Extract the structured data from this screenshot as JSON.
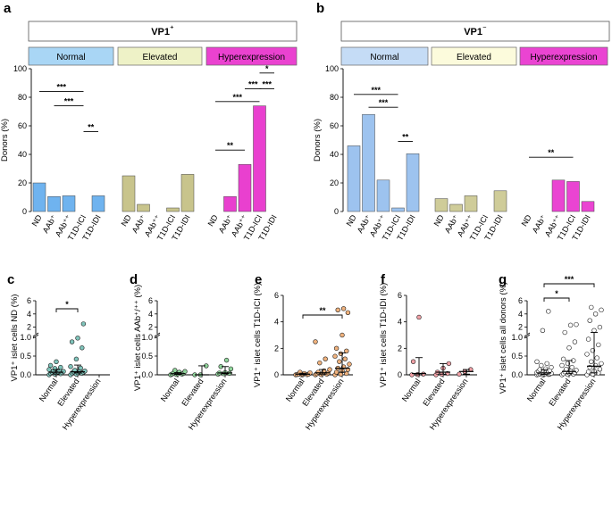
{
  "colors": {
    "a_normal": "#6fb3ef",
    "a_normal_box": "#a9d6f5",
    "a_elevated": "#c8c48c",
    "a_elevated_box": "#eef2c7",
    "a_hyper": "#e940cf",
    "a_hyper_box": "#ea42d0",
    "b_normal": "#9dc3ef",
    "b_normal_box": "#c5dcf6",
    "b_elevated": "#cfcc99",
    "b_elevated_box": "#fcfbdc",
    "b_hyper": "#ea44d2",
    "b_hyper_box": "#ea44d2",
    "c_dot": "#7fc4bb",
    "d_dot": "#8fd39a",
    "e_dot": "#f0b27d",
    "f_dot": "#f1a0a6",
    "g_dot": "#ffffff"
  },
  "chart_data": [
    {
      "panel": "a",
      "type": "bar",
      "title": "VP1⁺",
      "groups": [
        "Normal",
        "Elevated",
        "Hyperexpression"
      ],
      "categories": [
        "ND",
        "AAb⁺",
        "AAb⁺⁺",
        "T1D-ICI",
        "T1D-IDI"
      ],
      "series": [
        {
          "name": "Normal",
          "values": [
            20,
            10.5,
            11,
            0,
            11
          ]
        },
        {
          "name": "Elevated",
          "values": [
            25,
            5,
            0,
            2.5,
            26
          ]
        },
        {
          "name": "Hyperexpression",
          "values": [
            0,
            10.5,
            33,
            74,
            0
          ]
        }
      ],
      "ylabel": "Donors (%)",
      "ylim": [
        0,
        100
      ],
      "yticks": [
        0,
        20,
        40,
        60,
        80,
        100
      ],
      "significance": [
        {
          "group": 0,
          "from": 0,
          "to": 3,
          "label": "***"
        },
        {
          "group": 0,
          "from": 1,
          "to": 3,
          "label": "***"
        },
        {
          "group": 0,
          "from": 3,
          "to": 4,
          "label": "**"
        },
        {
          "group": 2,
          "from": 3,
          "to": 4,
          "label": "*"
        },
        {
          "group": 2,
          "from": 2,
          "to": 4,
          "label": "***"
        },
        {
          "group": 2,
          "from": 2,
          "to": 3,
          "label": "***"
        },
        {
          "group": 2,
          "from": 0,
          "to": 3,
          "label": "***"
        },
        {
          "group": 2,
          "from": 0,
          "to": 2,
          "label": "**"
        }
      ]
    },
    {
      "panel": "b",
      "type": "bar",
      "title": "VP1⁻",
      "groups": [
        "Normal",
        "Elevated",
        "Hyperexpression"
      ],
      "categories": [
        "ND",
        "AAb⁺",
        "AAb⁺⁺",
        "T1D-ICI",
        "T1D-IDI"
      ],
      "series": [
        {
          "name": "Normal",
          "values": [
            46,
            68,
            22,
            2.5,
            40.5
          ]
        },
        {
          "name": "Elevated",
          "values": [
            9,
            5,
            11,
            0,
            14.5
          ]
        },
        {
          "name": "Hyperexpression",
          "values": [
            0,
            0,
            22,
            21,
            7
          ]
        }
      ],
      "ylabel": "Donors (%)",
      "ylim": [
        0,
        100
      ],
      "yticks": [
        0,
        20,
        40,
        60,
        80,
        100
      ],
      "significance": [
        {
          "group": 0,
          "from": 0,
          "to": 3,
          "label": "***"
        },
        {
          "group": 0,
          "from": 1,
          "to": 3,
          "label": "***"
        },
        {
          "group": 0,
          "from": 3,
          "to": 4,
          "label": "**"
        },
        {
          "group": 2,
          "from": 0,
          "to": 3,
          "label": "**"
        }
      ]
    },
    {
      "panel": "c",
      "type": "scatter",
      "ylabel": "VP1⁺ islet cells ND (%)",
      "categories": [
        "Normal",
        "Elevated",
        "Hyperexpression"
      ],
      "yticks_lower": [
        0,
        0.5,
        1
      ],
      "yticks_upper": [
        2,
        4,
        6
      ],
      "ylim_lower": [
        0,
        1
      ],
      "ylim_upper": [
        1,
        6
      ],
      "points": [
        [
          0,
          0.02,
          0.03,
          0.04,
          0.05,
          0.06,
          0.07,
          0.08,
          0.09,
          0.1,
          0.12,
          0.14,
          0.17,
          0.2,
          0.25,
          0.35
        ],
        [
          0,
          0.02,
          0.04,
          0.05,
          0.06,
          0.07,
          0.08,
          0.09,
          0.1,
          0.12,
          0.18,
          0.22,
          0.42,
          0.72,
          0.88,
          0.98,
          2.5
        ],
        []
      ],
      "medians": [
        0.07,
        0.08,
        null
      ],
      "iqr": [
        [
          0.02,
          0.14
        ],
        [
          0.05,
          0.26
        ],
        null
      ],
      "significance": [
        {
          "from": 0,
          "to": 1,
          "label": "*"
        }
      ]
    },
    {
      "panel": "d",
      "type": "scatter",
      "ylabel": "VP1⁺ islet cells AAb⁺/⁺⁺ (%)",
      "categories": [
        "Normal",
        "Elevated",
        "Hyperexpression"
      ],
      "yticks_lower": [
        0,
        0.5,
        1
      ],
      "yticks_upper": [
        2,
        4,
        6
      ],
      "ylim_lower": [
        0,
        1
      ],
      "ylim_upper": [
        1,
        6
      ],
      "points": [
        [
          0,
          0.01,
          0.02,
          0.02,
          0.03,
          0.04,
          0.05,
          0.07,
          0.09,
          0.12
        ],
        [
          0,
          0,
          0.24
        ],
        [
          0.02,
          0.03,
          0.04,
          0.05,
          0.06,
          0.16,
          0.22,
          0.39
        ]
      ],
      "medians": [
        0.03,
        0,
        0.05
      ],
      "iqr": [
        [
          0.01,
          0.06
        ],
        [
          0,
          0.24
        ],
        [
          0.03,
          0.22
        ]
      ],
      "significance": []
    },
    {
      "panel": "e",
      "type": "scatter",
      "ylabel": "VP1⁺ islet cells T1D-ICI (%)",
      "categories": [
        "Normal",
        "Elevated",
        "Hyperexpression"
      ],
      "yticks": [
        0,
        2,
        4,
        6
      ],
      "ylim": [
        0,
        6
      ],
      "points": [
        [
          0,
          0,
          0.01,
          0.02,
          0.03,
          0.05,
          0.07,
          0.1,
          0.15,
          0.2
        ],
        [
          0,
          0.02,
          0.05,
          0.08,
          0.1,
          0.15,
          0.2,
          0.3,
          0.4,
          0.9,
          1.2,
          2.5
        ],
        [
          0,
          0.05,
          0.1,
          0.2,
          0.3,
          0.4,
          0.5,
          0.6,
          0.8,
          1.0,
          1.2,
          1.4,
          1.6,
          1.8,
          2.0,
          3.0,
          4.7,
          4.9,
          5.0
        ]
      ],
      "medians": [
        0.05,
        0.15,
        0.5
      ],
      "iqr": [
        [
          0.01,
          0.12
        ],
        [
          0.05,
          0.4
        ],
        [
          0.2,
          1.65
        ]
      ],
      "significance": [
        {
          "from": 0,
          "to": 2,
          "label": "**"
        }
      ]
    },
    {
      "panel": "f",
      "type": "scatter",
      "ylabel": "VP1⁺ islet cells T1D-IDI (%)",
      "categories": [
        "Normal",
        "Elevated",
        "Hyperexpression"
      ],
      "yticks": [
        0,
        2,
        4,
        6
      ],
      "ylim": [
        0,
        6
      ],
      "points": [
        [
          0,
          0.02,
          0.05,
          1.0,
          4.35
        ],
        [
          0,
          0.05,
          0.1,
          0.2,
          0.5,
          0.85
        ],
        [
          0.05,
          0.25,
          0.4
        ]
      ],
      "medians": [
        0.1,
        0.2,
        0.25
      ],
      "iqr": [
        [
          0,
          1.3
        ],
        [
          0.05,
          0.85
        ],
        [
          0.05,
          0.4
        ]
      ],
      "significance": []
    },
    {
      "panel": "g",
      "type": "scatter",
      "ylabel": "VP1⁺ islet cells all donors (%)",
      "categories": [
        "Normal",
        "Elevated",
        "Hyperexpression"
      ],
      "yticks_lower": [
        0,
        0.5,
        1
      ],
      "yticks_upper": [
        2,
        4,
        6
      ],
      "ylim_lower": [
        0,
        1
      ],
      "ylim_upper": [
        1,
        6
      ],
      "points": [
        [
          0,
          0,
          0.01,
          0.01,
          0.02,
          0.02,
          0.03,
          0.03,
          0.04,
          0.05,
          0.05,
          0.06,
          0.07,
          0.08,
          0.09,
          0.1,
          0.12,
          0.14,
          0.16,
          0.2,
          0.25,
          0.3,
          0.35,
          1.5,
          4.4
        ],
        [
          0,
          0.01,
          0.02,
          0.03,
          0.05,
          0.06,
          0.08,
          0.1,
          0.12,
          0.15,
          0.2,
          0.25,
          0.3,
          0.38,
          0.42,
          0.72,
          0.88,
          1.2,
          2.3,
          2.4
        ],
        [
          0,
          0.02,
          0.05,
          0.08,
          0.1,
          0.15,
          0.2,
          0.25,
          0.3,
          0.35,
          0.45,
          0.55,
          0.65,
          0.8,
          0.95,
          1.5,
          2.0,
          3.0,
          4.0,
          4.6,
          5.0
        ]
      ],
      "medians": [
        0.05,
        0.09,
        0.23
      ],
      "iqr": [
        [
          0.01,
          0.14
        ],
        [
          0.03,
          0.38
        ],
        [
          0.05,
          1.2
        ]
      ],
      "significance": [
        {
          "from": 0,
          "to": 1,
          "label": "*"
        },
        {
          "from": 0,
          "to": 2,
          "label": "***"
        }
      ]
    }
  ]
}
